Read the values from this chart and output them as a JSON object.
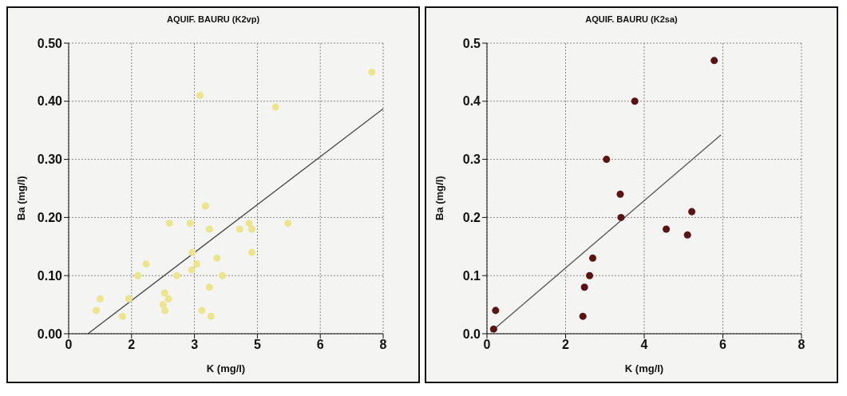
{
  "chart_data": [
    {
      "type": "scatter",
      "title": "AQUIF. BAURU (K2vp)",
      "xlabel": "K (mg/l)",
      "ylabel": "Ba (mg/l)",
      "xlim": [
        0,
        8
      ],
      "xticks": [
        {
          "value": 0,
          "label": "0"
        },
        {
          "value": 1.6,
          "label": "2"
        },
        {
          "value": 3.2,
          "label": "3"
        },
        {
          "value": 4.8,
          "label": "5"
        },
        {
          "value": 6.4,
          "label": "6"
        },
        {
          "value": 8,
          "label": "8"
        }
      ],
      "ylim": [
        0,
        0.5
      ],
      "yticks": [
        {
          "value": 0,
          "label": "0.00"
        },
        {
          "value": 0.1,
          "label": "0.10"
        },
        {
          "value": 0.2,
          "label": "0.20"
        },
        {
          "value": 0.3,
          "label": "0.30"
        },
        {
          "value": 0.4,
          "label": "0.40"
        },
        {
          "value": 0.5,
          "label": "0.50"
        }
      ],
      "grid": true,
      "series": [
        {
          "color": "#ece58e",
          "marker": "circle",
          "x": [
            0.7,
            0.8,
            1.37,
            1.53,
            1.76,
            1.97,
            2.56,
            2.4,
            2.44,
            2.45,
            2.54,
            2.75,
            3.09,
            3.14,
            3.26,
            3.13,
            3.34,
            3.39,
            3.48,
            3.58,
            3.58,
            3.62,
            3.77,
            3.91,
            4.35,
            4.59,
            4.66,
            4.66,
            5.26,
            5.58,
            7.71
          ],
          "values": [
            0.04,
            0.06,
            0.03,
            0.06,
            0.1,
            0.12,
            0.19,
            0.05,
            0.07,
            0.04,
            0.06,
            0.1,
            0.19,
            0.14,
            0.12,
            0.11,
            0.41,
            0.04,
            0.22,
            0.18,
            0.08,
            0.03,
            0.13,
            0.1,
            0.18,
            0.19,
            0.18,
            0.14,
            0.39,
            0.19,
            0.45
          ]
        },
        {
          "type": "line",
          "color": "#444444",
          "marker": "none",
          "x": [
            0.49,
            8
          ],
          "values": [
            0,
            0.387
          ]
        }
      ]
    },
    {
      "type": "scatter",
      "title": "AQUIF. BAURU (K2sa)",
      "xlabel": "K (mg/l)",
      "ylabel": "Ba (mg/l)",
      "xlim": [
        0,
        8
      ],
      "xticks": [
        0,
        2,
        4,
        6,
        8
      ],
      "ylim": [
        0,
        0.5
      ],
      "yticks": [
        {
          "value": 0,
          "label": "0.0"
        },
        {
          "value": 0.1,
          "label": "0.1"
        },
        {
          "value": 0.2,
          "label": "0.2"
        },
        {
          "value": 0.3,
          "label": "0.3"
        },
        {
          "value": 0.4,
          "label": "0.4"
        },
        {
          "value": 0.5,
          "label": "0.5"
        }
      ],
      "grid": true,
      "series": [
        {
          "color": "#5a1414",
          "marker": "circle",
          "x": [
            0.17,
            0.22,
            2.44,
            2.48,
            2.61,
            2.69,
            3.04,
            3.39,
            3.41,
            3.76,
            4.56,
            5.1,
            5.21,
            5.78
          ],
          "values": [
            0.008,
            0.04,
            0.03,
            0.08,
            0.1,
            0.13,
            0.3,
            0.24,
            0.2,
            0.4,
            0.18,
            0.17,
            0.21,
            0.47
          ]
        },
        {
          "type": "line",
          "color": "#555555",
          "marker": "none",
          "x": [
            0.1,
            5.95
          ],
          "values": [
            0.003,
            0.342
          ]
        }
      ]
    }
  ]
}
